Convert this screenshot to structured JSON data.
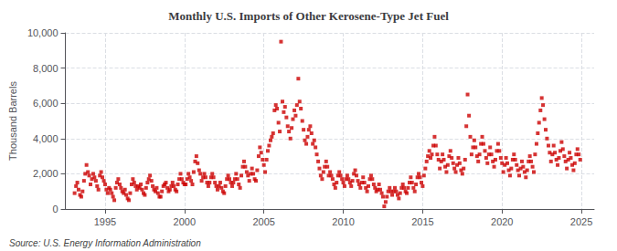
{
  "chart_data": {
    "type": "scatter",
    "title": "Monthly U.S. Imports of Other Kerosene-Type Jet Fuel",
    "ylabel": "Thousand Barrels",
    "annotations": [
      "Source: U.S. Energy Information Administration"
    ],
    "color": "#cc0000",
    "marker": "square",
    "grid": true,
    "xlim": [
      1992.5,
      2025.8
    ],
    "xticks": [
      1995,
      2000,
      2005,
      2010,
      2015,
      2020,
      2025
    ],
    "ylim": [
      0,
      10000
    ],
    "yticks": [
      0,
      {
        "value": 2000,
        "label": "2,000"
      },
      {
        "value": 4000,
        "label": "4,000"
      },
      {
        "value": 6000,
        "label": "6,000"
      },
      {
        "value": 8000,
        "label": "8,000"
      },
      {
        "value": 10000,
        "label": "10,000"
      }
    ],
    "x": [
      1993.08,
      1993.17,
      1993.25,
      1993.33,
      1993.42,
      1993.5,
      1993.58,
      1993.67,
      1993.75,
      1993.83,
      1993.92,
      1994,
      1994.08,
      1994.17,
      1994.25,
      1994.33,
      1994.42,
      1994.5,
      1994.58,
      1994.67,
      1994.75,
      1994.83,
      1994.92,
      1995,
      1995.08,
      1995.17,
      1995.25,
      1995.33,
      1995.42,
      1995.5,
      1995.58,
      1995.67,
      1995.75,
      1995.83,
      1995.92,
      1996,
      1996.08,
      1996.17,
      1996.25,
      1996.33,
      1996.42,
      1996.5,
      1996.58,
      1996.67,
      1996.75,
      1996.83,
      1996.92,
      1997,
      1997.08,
      1997.17,
      1997.25,
      1997.33,
      1997.42,
      1997.5,
      1997.58,
      1997.67,
      1997.75,
      1997.83,
      1997.92,
      1998,
      1998.08,
      1998.17,
      1998.25,
      1998.33,
      1998.42,
      1998.5,
      1998.58,
      1998.67,
      1998.75,
      1998.83,
      1998.92,
      1999,
      1999.08,
      1999.17,
      1999.25,
      1999.33,
      1999.42,
      1999.5,
      1999.58,
      1999.67,
      1999.75,
      1999.83,
      1999.92,
      2000,
      2000.08,
      2000.17,
      2000.25,
      2000.33,
      2000.42,
      2000.5,
      2000.58,
      2000.67,
      2000.75,
      2000.83,
      2000.92,
      2001,
      2001.08,
      2001.17,
      2001.25,
      2001.33,
      2001.42,
      2001.5,
      2001.58,
      2001.67,
      2001.75,
      2001.83,
      2001.92,
      2002,
      2002.08,
      2002.17,
      2002.25,
      2002.33,
      2002.42,
      2002.5,
      2002.58,
      2002.67,
      2002.75,
      2002.83,
      2002.92,
      2003,
      2003.08,
      2003.17,
      2003.25,
      2003.33,
      2003.42,
      2003.5,
      2003.58,
      2003.67,
      2003.75,
      2003.83,
      2003.92,
      2004,
      2004.08,
      2004.17,
      2004.25,
      2004.33,
      2004.42,
      2004.5,
      2004.58,
      2004.67,
      2004.75,
      2004.83,
      2004.92,
      2005,
      2005.08,
      2005.17,
      2005.25,
      2005.33,
      2005.42,
      2005.5,
      2005.58,
      2005.67,
      2005.75,
      2005.83,
      2005.92,
      2006,
      2006.08,
      2006.17,
      2006.25,
      2006.33,
      2006.42,
      2006.5,
      2006.58,
      2006.67,
      2006.75,
      2006.83,
      2006.92,
      2007,
      2007.08,
      2007.17,
      2007.25,
      2007.33,
      2007.42,
      2007.5,
      2007.58,
      2007.67,
      2007.75,
      2007.83,
      2007.92,
      2008,
      2008.08,
      2008.17,
      2008.25,
      2008.33,
      2008.42,
      2008.5,
      2008.58,
      2008.67,
      2008.75,
      2008.83,
      2008.92,
      2009,
      2009.08,
      2009.17,
      2009.25,
      2009.33,
      2009.42,
      2009.5,
      2009.58,
      2009.67,
      2009.75,
      2009.83,
      2009.92,
      2010,
      2010.08,
      2010.17,
      2010.25,
      2010.33,
      2010.42,
      2010.5,
      2010.58,
      2010.67,
      2010.75,
      2010.83,
      2010.92,
      2011,
      2011.08,
      2011.17,
      2011.25,
      2011.33,
      2011.42,
      2011.5,
      2011.58,
      2011.67,
      2011.75,
      2011.83,
      2011.92,
      2012,
      2012.08,
      2012.17,
      2012.25,
      2012.33,
      2012.42,
      2012.5,
      2012.58,
      2012.67,
      2012.75,
      2012.83,
      2012.92,
      2013,
      2013.08,
      2013.17,
      2013.25,
      2013.33,
      2013.42,
      2013.5,
      2013.58,
      2013.67,
      2013.75,
      2013.83,
      2013.92,
      2014,
      2014.08,
      2014.17,
      2014.25,
      2014.33,
      2014.42,
      2014.5,
      2014.58,
      2014.67,
      2014.75,
      2014.83,
      2014.92,
      2015,
      2015.08,
      2015.17,
      2015.25,
      2015.33,
      2015.42,
      2015.5,
      2015.58,
      2015.67,
      2015.75,
      2015.83,
      2015.92,
      2016,
      2016.08,
      2016.17,
      2016.25,
      2016.33,
      2016.42,
      2016.5,
      2016.58,
      2016.67,
      2016.75,
      2016.83,
      2016.92,
      2017,
      2017.08,
      2017.17,
      2017.25,
      2017.33,
      2017.42,
      2017.5,
      2017.58,
      2017.67,
      2017.75,
      2017.83,
      2017.92,
      2018,
      2018.08,
      2018.17,
      2018.25,
      2018.33,
      2018.42,
      2018.5,
      2018.58,
      2018.67,
      2018.75,
      2018.83,
      2018.92,
      2019,
      2019.08,
      2019.17,
      2019.25,
      2019.33,
      2019.42,
      2019.5,
      2019.58,
      2019.67,
      2019.75,
      2019.83,
      2019.92,
      2020,
      2020.08,
      2020.17,
      2020.25,
      2020.33,
      2020.42,
      2020.5,
      2020.58,
      2020.67,
      2020.75,
      2020.83,
      2020.92,
      2021,
      2021.08,
      2021.17,
      2021.25,
      2021.33,
      2021.42,
      2021.5,
      2021.58,
      2021.67,
      2021.75,
      2021.83,
      2021.92,
      2022,
      2022.08,
      2022.17,
      2022.25,
      2022.33,
      2022.42,
      2022.5,
      2022.58,
      2022.67,
      2022.75,
      2022.83,
      2022.92,
      2023,
      2023.08,
      2023.17,
      2023.25,
      2023.33,
      2023.42,
      2023.5,
      2023.58,
      2023.67,
      2023.75,
      2023.83,
      2023.92,
      2024,
      2024.08,
      2024.17,
      2024.25,
      2024.33,
      2024.42,
      2024.5,
      2024.58,
      2024.67,
      2024.75,
      2024.83,
      2024.92
    ],
    "values": [
      900,
      1300,
      1500,
      1100,
      800,
      700,
      1000,
      1600,
      2000,
      2500,
      2100,
      1900,
      1400,
      1700,
      2000,
      1800,
      1600,
      1300,
      1100,
      1900,
      2100,
      1800,
      1600,
      1400,
      1100,
      900,
      1200,
      1100,
      900,
      700,
      500,
      1200,
      1500,
      1700,
      1400,
      1200,
      1000,
      900,
      1100,
      800,
      600,
      500,
      900,
      1400,
      1700,
      1500,
      1300,
      1100,
      1300,
      1200,
      1400,
      1100,
      900,
      800,
      1200,
      1500,
      1700,
      1900,
      1600,
      1300,
      1100,
      1000,
      1200,
      900,
      700,
      700,
      1000,
      1300,
      1400,
      1500,
      1200,
      1000,
      1100,
      1300,
      1500,
      1300,
      1100,
      1000,
      1400,
      1700,
      2000,
      1700,
      1500,
      1400,
      1400,
      1700,
      2000,
      1800,
      1600,
      1400,
      2100,
      2700,
      3000,
      2600,
      2200,
      2000,
      1600,
      1800,
      2000,
      1800,
      1500,
      1300,
      1500,
      1800,
      2000,
      1800,
      1500,
      1300,
      1100,
      1300,
      1500,
      1200,
      1000,
      900,
      1300,
      1700,
      1900,
      1700,
      1500,
      1300,
      1500,
      1700,
      2000,
      1700,
      1400,
      1200,
      1900,
      2400,
      2700,
      2400,
      2100,
      1900,
      1600,
      2000,
      2300,
      2000,
      1700,
      1600,
      2200,
      3000,
      3500,
      3200,
      2800,
      2500,
      2100,
      2800,
      3300,
      3600,
      3900,
      4100,
      4300,
      5600,
      5900,
      5700,
      4900,
      4400,
      9500,
      6100,
      5500,
      5800,
      5200,
      4700,
      4400,
      4000,
      4600,
      5100,
      5600,
      5300,
      5900,
      7400,
      6100,
      5700,
      5000,
      4500,
      3900,
      3700,
      4100,
      4500,
      4700,
      4300,
      3700,
      3900,
      3500,
      3100,
      2700,
      2300,
      1900,
      1700,
      2100,
      2400,
      2700,
      2400,
      1900,
      2100,
      1900,
      1700,
      1400,
      1200,
      1500,
      1900,
      2100,
      1900,
      1700,
      1500,
      1300,
      1700,
      1900,
      1700,
      1500,
      1300,
      1600,
      2000,
      2200,
      1900,
      1600,
      1400,
      1200,
      1500,
      1800,
      1500,
      1200,
      1000,
      1300,
      1700,
      1900,
      1700,
      1400,
      1200,
      1000,
      1100,
      1400,
      1100,
      900,
      700,
      150,
      400,
      700,
      1000,
      1200,
      1000,
      800,
      1000,
      1200,
      1000,
      800,
      600,
      900,
      1200,
      1400,
      1200,
      1000,
      900,
      1200,
      1500,
      1800,
      1500,
      1200,
      1000,
      1400,
      1800,
      2000,
      1800,
      1500,
      1300,
      1900,
      2300,
      2700,
      3000,
      3300,
      2900,
      3100,
      3600,
      4100,
      3600,
      3100,
      2800,
      2300,
      2700,
      3100,
      2800,
      2400,
      2100,
      2500,
      3000,
      3300,
      2900,
      2600,
      2300,
      2100,
      2500,
      2900,
      2600,
      2200,
      2000,
      2300,
      2800,
      4700,
      6500,
      5300,
      4100,
      3100,
      3500,
      3900,
      3500,
      3000,
      2700,
      3100,
      3700,
      4100,
      3700,
      3300,
      2900,
      2600,
      3100,
      3500,
      3100,
      2700,
      2400,
      2800,
      3300,
      3700,
      3300,
      2900,
      2600,
      2100,
      2500,
      2900,
      2600,
      2200,
      1900,
      2300,
      2800,
      3100,
      2800,
      2500,
      2200,
      1900,
      2300,
      2700,
      2400,
      2100,
      1800,
      2200,
      2700,
      3000,
      2700,
      2400,
      2100,
      3100,
      3700,
      4300,
      4900,
      5600,
      6300,
      5900,
      5100,
      4500,
      4000,
      3600,
      3200,
      2700,
      3100,
      3600,
      3200,
      2800,
      2500,
      2900,
      3300,
      3800,
      3400,
      3000,
      2700,
      2300,
      2800,
      3200,
      2900,
      2500,
      2200,
      2600,
      3100,
      3400,
      3100,
      2800
    ]
  }
}
